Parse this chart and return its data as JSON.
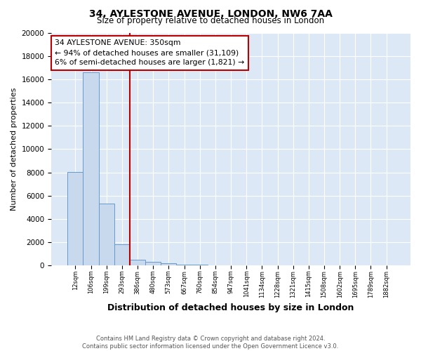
{
  "title1": "34, AYLESTONE AVENUE, LONDON, NW6 7AA",
  "title2": "Size of property relative to detached houses in London",
  "xlabel": "Distribution of detached houses by size in London",
  "ylabel": "Number of detached properties",
  "bar_labels": [
    "12sqm",
    "106sqm",
    "199sqm",
    "293sqm",
    "386sqm",
    "480sqm",
    "573sqm",
    "667sqm",
    "760sqm",
    "854sqm",
    "947sqm",
    "1041sqm",
    "1134sqm",
    "1228sqm",
    "1321sqm",
    "1415sqm",
    "1508sqm",
    "1602sqm",
    "1695sqm",
    "1789sqm",
    "1882sqm"
  ],
  "bar_values": [
    8050,
    16600,
    5300,
    1800,
    500,
    300,
    180,
    100,
    55,
    35,
    22,
    14,
    9,
    6,
    4,
    3,
    2,
    2,
    1,
    1,
    1
  ],
  "bar_color": "#c8d9ee",
  "bar_edge_color": "#6699cc",
  "red_line_x": 3.5,
  "annotation_text": "34 AYLESTONE AVENUE: 350sqm\n← 94% of detached houses are smaller (31,109)\n6% of semi-detached houses are larger (1,821) →",
  "annotation_box_color": "#ffffff",
  "annotation_border_color": "#bb0000",
  "ylim": [
    0,
    20000
  ],
  "yticks": [
    0,
    2000,
    4000,
    6000,
    8000,
    10000,
    12000,
    14000,
    16000,
    18000,
    20000
  ],
  "footnote": "Contains HM Land Registry data © Crown copyright and database right 2024.\nContains public sector information licensed under the Open Government Licence v3.0.",
  "background_color": "#dce8f5",
  "grid_color": "#ffffff",
  "title1_fontsize": 10,
  "title2_fontsize": 8.5,
  "xlabel_fontsize": 9,
  "ylabel_fontsize": 8
}
